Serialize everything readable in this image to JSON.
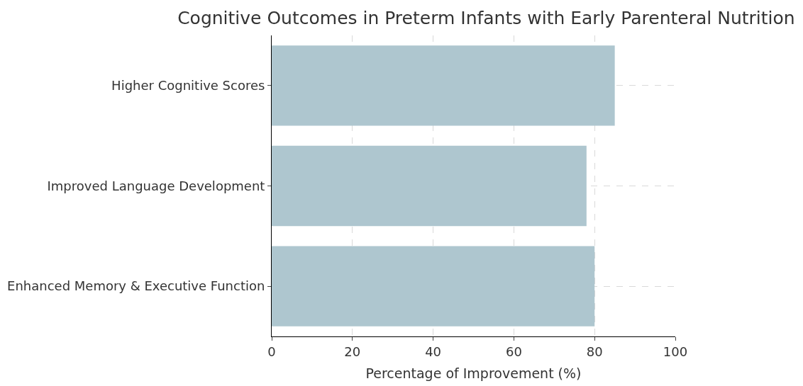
{
  "chart_data": {
    "type": "bar",
    "orientation": "horizontal",
    "title": "Cognitive Outcomes in Preterm Infants with Early Parenteral Nutrition",
    "xlabel": "Percentage of Improvement (%)",
    "categories": [
      "Higher Cognitive Scores",
      "Improved Language Development",
      "Enhanced Memory & Executive Function"
    ],
    "values": [
      85,
      78,
      80
    ],
    "color": "#aec6cf",
    "xlim": [
      0,
      100
    ],
    "xticks": [
      0,
      20,
      40,
      60,
      80,
      100
    ],
    "grid": true,
    "line_style": "dashed"
  }
}
